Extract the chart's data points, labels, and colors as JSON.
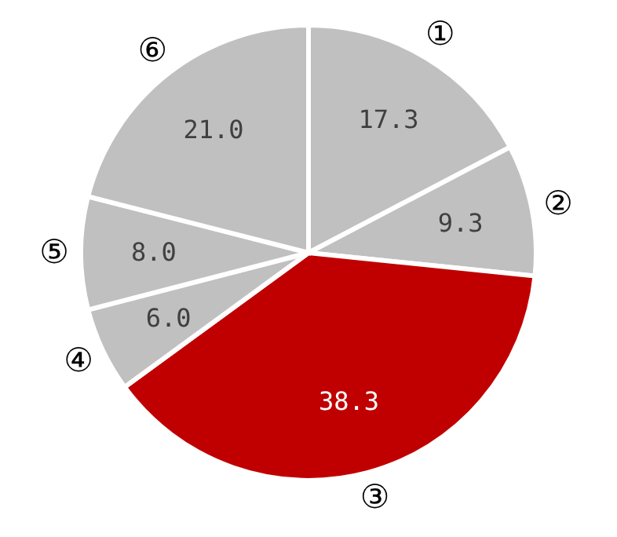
{
  "chart_data": {
    "type": "pie",
    "categories": [
      "①",
      "②",
      "③",
      "④",
      "⑤",
      "⑥"
    ],
    "values": [
      17.3,
      9.3,
      38.3,
      6.0,
      8.0,
      21.0
    ],
    "value_labels": [
      "17.3",
      "9.3",
      "38.3",
      "6.0",
      "8.0",
      "21.0"
    ],
    "colors": [
      "#c0c0c0",
      "#c0c0c0",
      "#c00000",
      "#c0c0c0",
      "#c0c0c0",
      "#c0c0c0"
    ]
  }
}
